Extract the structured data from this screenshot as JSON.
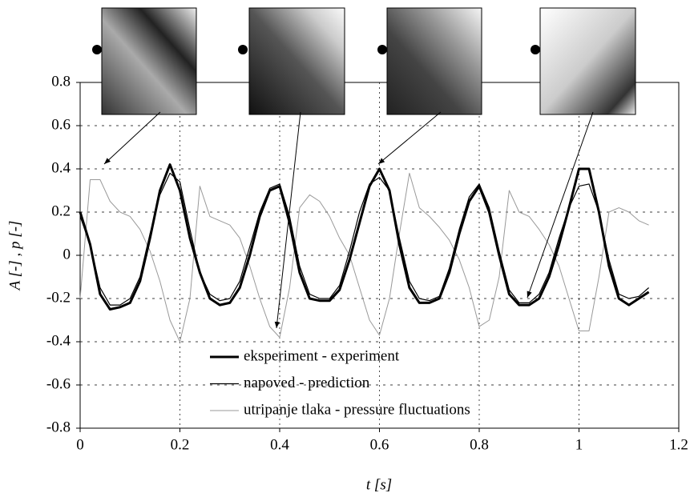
{
  "chart_data": {
    "type": "line",
    "xlabel": "t [s]",
    "ylabel": "A [-] , p [-]",
    "x": [
      0,
      0.02,
      0.04,
      0.06,
      0.08,
      0.1,
      0.12,
      0.14,
      0.16,
      0.18,
      0.2,
      0.22,
      0.24,
      0.26,
      0.28,
      0.3,
      0.32,
      0.34,
      0.36,
      0.38,
      0.4,
      0.42,
      0.44,
      0.46,
      0.48,
      0.5,
      0.52,
      0.54,
      0.56,
      0.58,
      0.6,
      0.62,
      0.64,
      0.66,
      0.68,
      0.7,
      0.72,
      0.74,
      0.76,
      0.78,
      0.8,
      0.82,
      0.84,
      0.86,
      0.88,
      0.9,
      0.92,
      0.94,
      0.96,
      0.98,
      1,
      1.02,
      1.04,
      1.06,
      1.08,
      1.1,
      1.12,
      1.14
    ],
    "series": [
      {
        "name": "eksperiment - experiment",
        "color": "#000000",
        "width": 3,
        "values": [
          0.2,
          0.05,
          -0.18,
          -0.25,
          -0.24,
          -0.22,
          -0.12,
          0.08,
          0.3,
          0.42,
          0.3,
          0.08,
          -0.08,
          -0.2,
          -0.23,
          -0.22,
          -0.15,
          0,
          0.18,
          0.3,
          0.32,
          0.15,
          -0.08,
          -0.2,
          -0.21,
          -0.21,
          -0.16,
          -0.02,
          0.15,
          0.32,
          0.4,
          0.3,
          0.05,
          -0.15,
          -0.22,
          -0.22,
          -0.2,
          -0.08,
          0.1,
          0.25,
          0.32,
          0.2,
          0,
          -0.18,
          -0.23,
          -0.23,
          -0.2,
          -0.1,
          0.05,
          0.22,
          0.4,
          0.4,
          0.2,
          -0.05,
          -0.2,
          -0.23,
          -0.2,
          -0.17
        ]
      },
      {
        "name": "napoved - prediction",
        "color": "#000000",
        "width": 1.2,
        "values": [
          0.18,
          0.05,
          -0.15,
          -0.23,
          -0.23,
          -0.2,
          -0.1,
          0.1,
          0.28,
          0.38,
          0.34,
          0.12,
          -0.08,
          -0.18,
          -0.21,
          -0.2,
          -0.12,
          0.04,
          0.2,
          0.31,
          0.33,
          0.18,
          -0.05,
          -0.18,
          -0.2,
          -0.2,
          -0.14,
          0.02,
          0.2,
          0.33,
          0.36,
          0.3,
          0.08,
          -0.12,
          -0.2,
          -0.21,
          -0.19,
          -0.06,
          0.12,
          0.27,
          0.33,
          0.22,
          0.02,
          -0.16,
          -0.22,
          -0.22,
          -0.18,
          -0.08,
          0.08,
          0.22,
          0.32,
          0.33,
          0.2,
          -0.02,
          -0.18,
          -0.2,
          -0.19,
          -0.15
        ]
      },
      {
        "name": "utripanje tlaka - pressure fluctuations",
        "color": "#999999",
        "width": 1,
        "values": [
          -0.2,
          0.35,
          0.35,
          0.25,
          0.2,
          0.18,
          0.12,
          0.02,
          -0.12,
          -0.3,
          -0.4,
          -0.2,
          0.32,
          0.18,
          0.16,
          0.14,
          0.08,
          -0.05,
          -0.2,
          -0.33,
          -0.38,
          -0.15,
          0.22,
          0.28,
          0.25,
          0.18,
          0.08,
          0,
          -0.15,
          -0.3,
          -0.37,
          -0.2,
          0.1,
          0.38,
          0.22,
          0.18,
          0.13,
          0.07,
          -0.02,
          -0.15,
          -0.33,
          -0.3,
          -0.1,
          0.3,
          0.2,
          0.18,
          0.12,
          0.05,
          -0.05,
          -0.2,
          -0.35,
          -0.35,
          -0.1,
          0.2,
          0.22,
          0.2,
          0.16,
          0.14
        ]
      }
    ],
    "xlim": [
      0,
      1.2
    ],
    "xticks": [
      0,
      0.2,
      0.4,
      0.6,
      0.8,
      1,
      1.2
    ],
    "ylim": [
      -0.8,
      0.8
    ],
    "yticks": [
      -0.8,
      -0.6,
      -0.4,
      -0.2,
      0,
      0.2,
      0.4,
      0.6,
      0.8
    ],
    "grid": true,
    "legend": "lower center"
  }
}
